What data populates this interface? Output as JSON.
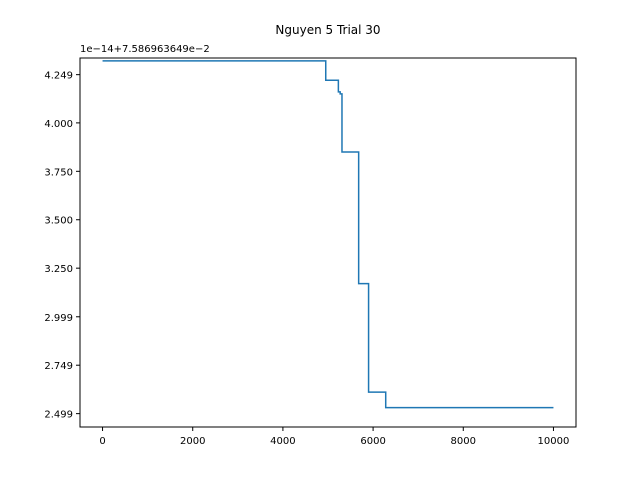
{
  "chart_data": {
    "type": "line",
    "title": "Nguyen 5 Trial 30",
    "xlabel": "",
    "ylabel": "",
    "y_offset_label": "1e−14+7.586963649e−2",
    "xlim": [
      -500,
      10500
    ],
    "ylim": [
      2.43,
      4.335
    ],
    "grid": false,
    "x_ticks": [
      {
        "value": 0,
        "label": "0"
      },
      {
        "value": 2000,
        "label": "2000"
      },
      {
        "value": 4000,
        "label": "4000"
      },
      {
        "value": 6000,
        "label": "6000"
      },
      {
        "value": 8000,
        "label": "8000"
      },
      {
        "value": 10000,
        "label": "10000"
      }
    ],
    "y_ticks": [
      {
        "value": 2.499,
        "label": "2.499"
      },
      {
        "value": 2.749,
        "label": "2.749"
      },
      {
        "value": 2.999,
        "label": "2.999"
      },
      {
        "value": 3.25,
        "label": "3.250"
      },
      {
        "value": 3.5,
        "label": "3.500"
      },
      {
        "value": 3.75,
        "label": "3.750"
      },
      {
        "value": 4.0,
        "label": "4.000"
      },
      {
        "value": 4.249,
        "label": "4.249"
      }
    ],
    "series": [
      {
        "color": "#1f77b4",
        "step": "post",
        "x": [
          0,
          4950,
          5230,
          5270,
          5310,
          5680,
          5900,
          6280,
          10000
        ],
        "y": [
          4.32,
          4.22,
          4.16,
          4.15,
          3.85,
          3.17,
          2.61,
          2.53,
          2.53
        ]
      }
    ]
  }
}
